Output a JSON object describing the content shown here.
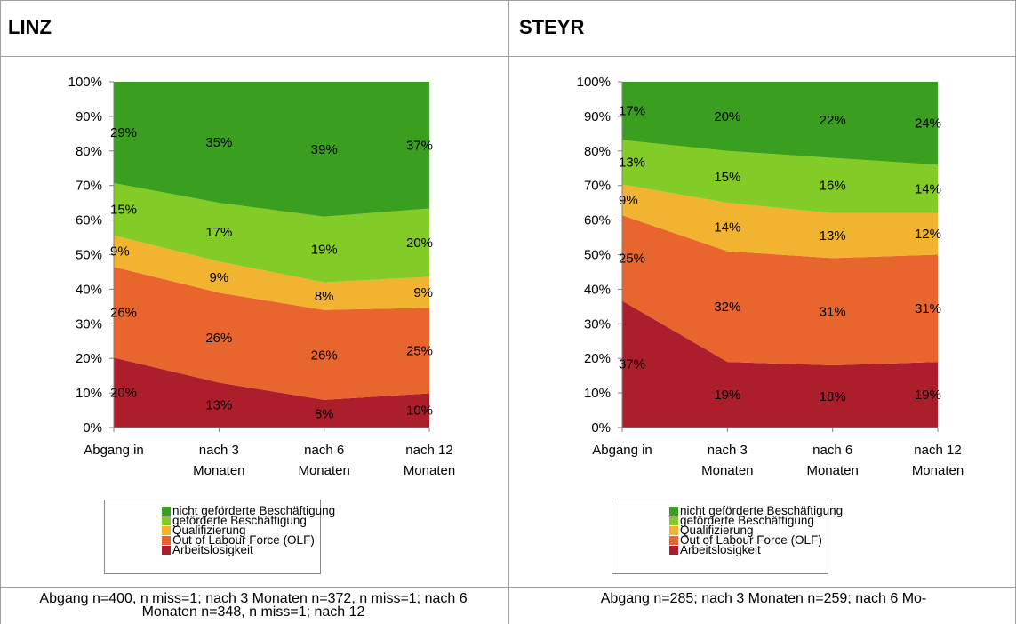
{
  "panels": {
    "left": {
      "title": "LINZ",
      "footnote": "Abgang n=400, n miss=1; nach 3 Monaten n=372, n miss=1; nach 6 Monaten n=348, n miss=1; nach 12"
    },
    "right": {
      "title": "STEYR",
      "footnote": "Abgang n=285; nach 3 Monaten n=259; nach 6 Mo-"
    }
  },
  "legend": {
    "items": [
      {
        "label": "nicht geförderte Beschäftigung",
        "color": "#3a9e1f"
      },
      {
        "label": "geförderte Beschäftigung",
        "color": "#83cc27"
      },
      {
        "label": "Qualifizierung",
        "color": "#f2b430"
      },
      {
        "label": "Out of Labour Force (OLF)",
        "color": "#e8652e"
      },
      {
        "label": "Arbeitslosigkeit",
        "color": "#ad1e2c"
      }
    ]
  },
  "chart_data": [
    {
      "type": "area",
      "stacked": true,
      "title": "LINZ",
      "categories": [
        "Abgang in",
        "nach 3 Monaten",
        "nach 6 Monaten",
        "nach 12 Monaten"
      ],
      "y_ticks": [
        "0%",
        "10%",
        "20%",
        "30%",
        "40%",
        "50%",
        "60%",
        "70%",
        "80%",
        "90%",
        "100%"
      ],
      "ylim": [
        0,
        100
      ],
      "series": [
        {
          "name": "Arbeitslosigkeit",
          "values": [
            20,
            13,
            8,
            10
          ],
          "labels": [
            "20%",
            "13%",
            "8%",
            "10%"
          ],
          "color": "#ad1e2c"
        },
        {
          "name": "Out of Labour Force (OLF)",
          "values": [
            26,
            26,
            26,
            25
          ],
          "labels": [
            "26%",
            "26%",
            "26%",
            "25%"
          ],
          "color": "#e8652e"
        },
        {
          "name": "Qualifizierung",
          "values": [
            9,
            9,
            8,
            9
          ],
          "labels": [
            "9%",
            "9%",
            "8%",
            "9%"
          ],
          "color": "#f2b430"
        },
        {
          "name": "geförderte Beschäftigung",
          "values": [
            15,
            17,
            19,
            20
          ],
          "labels": [
            "15%",
            "17%",
            "19%",
            "20%"
          ],
          "color": "#83cc27"
        },
        {
          "name": "nicht geförderte Beschäftigung",
          "values": [
            29,
            35,
            39,
            37
          ],
          "labels": [
            "29%",
            "35%",
            "39%",
            "37%"
          ],
          "color": "#3a9e1f"
        }
      ]
    },
    {
      "type": "area",
      "stacked": true,
      "title": "STEYR",
      "categories": [
        "Abgang in",
        "nach 3 Monaten",
        "nach 6 Monaten",
        "nach 12 Monaten"
      ],
      "y_ticks": [
        "0%",
        "10%",
        "20%",
        "30%",
        "40%",
        "50%",
        "60%",
        "70%",
        "80%",
        "90%",
        "100%"
      ],
      "ylim": [
        0,
        100
      ],
      "series": [
        {
          "name": "Arbeitslosigkeit",
          "values": [
            37,
            19,
            18,
            19
          ],
          "labels": [
            "37%",
            "19%",
            "18%",
            "19%"
          ],
          "color": "#ad1e2c"
        },
        {
          "name": "Out of Labour Force (OLF)",
          "values": [
            25,
            32,
            31,
            31
          ],
          "labels": [
            "25%",
            "32%",
            "31%",
            "31%"
          ],
          "color": "#e8652e"
        },
        {
          "name": "Qualifizierung",
          "values": [
            9,
            14,
            13,
            12
          ],
          "labels": [
            "9%",
            "14%",
            "13%",
            "12%"
          ],
          "color": "#f2b430"
        },
        {
          "name": "geförderte Beschäftigung",
          "values": [
            13,
            15,
            16,
            14
          ],
          "labels": [
            "13%",
            "15%",
            "16%",
            "14%"
          ],
          "color": "#83cc27"
        },
        {
          "name": "nicht geförderte Beschäftigung",
          "values": [
            17,
            20,
            22,
            24
          ],
          "labels": [
            "17%",
            "20%",
            "22%",
            "24%"
          ],
          "color": "#3a9e1f"
        }
      ]
    }
  ]
}
